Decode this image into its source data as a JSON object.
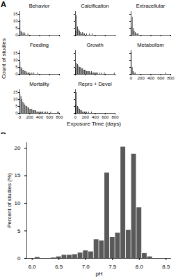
{
  "chart_data": [
    {
      "type": "histogram",
      "panel": "A",
      "title": "Behavior",
      "color": "#333333",
      "tick_labels": "y",
      "bins": [
        0,
        20,
        40,
        60,
        80,
        100,
        120,
        140,
        160,
        180
      ],
      "values": [
        11,
        3,
        2,
        1,
        2,
        1,
        0,
        0,
        1
      ],
      "xlim": [
        0,
        800
      ],
      "xticks": [
        0,
        200,
        400,
        600,
        800
      ],
      "ylim": [
        0,
        17
      ],
      "yticks": [
        0,
        5,
        10,
        15
      ]
    },
    {
      "type": "histogram",
      "title": "Calcification",
      "color": "#333333",
      "tick_labels": false,
      "bins": [
        0,
        20,
        40,
        60,
        80,
        100,
        120,
        140,
        160,
        180,
        200,
        220,
        240,
        260,
        280,
        300,
        320,
        340,
        360
      ],
      "values": [
        3,
        14,
        6,
        4,
        3,
        2,
        1,
        2,
        1,
        1,
        0,
        1,
        0,
        0,
        1,
        0,
        0,
        1
      ],
      "xlim": [
        0,
        800
      ],
      "xticks": [
        0,
        200,
        400,
        600,
        800
      ],
      "ylim": [
        0,
        17
      ],
      "yticks": [
        0,
        5,
        10,
        15
      ]
    },
    {
      "type": "histogram",
      "title": "Extracellular",
      "color": "#333333",
      "tick_labels": false,
      "bins": [
        0,
        20,
        40,
        60,
        80,
        100,
        120,
        140,
        160
      ],
      "values": [
        6,
        13,
        5,
        3,
        2,
        1,
        1,
        1
      ],
      "xlim": [
        0,
        800
      ],
      "xticks": [
        0,
        200,
        400,
        600,
        800
      ],
      "ylim": [
        0,
        17
      ],
      "yticks": [
        0,
        5,
        10,
        15
      ]
    },
    {
      "type": "histogram",
      "title": "Feeding",
      "color": "#333333",
      "tick_labels": "y",
      "bins": [
        0,
        20,
        40,
        60,
        80,
        100,
        120,
        140,
        160,
        180,
        200,
        220,
        240,
        260,
        280,
        300,
        320,
        340,
        360,
        380
      ],
      "values": [
        9,
        5,
        4,
        3,
        3,
        2,
        2,
        1,
        1,
        1,
        1,
        0,
        1,
        0,
        1,
        0,
        0,
        0,
        1
      ],
      "xlim": [
        0,
        800
      ],
      "xticks": [
        0,
        200,
        400,
        600,
        800
      ],
      "ylim": [
        0,
        17
      ],
      "yticks": [
        0,
        5,
        10,
        15
      ]
    },
    {
      "type": "histogram",
      "title": "Growth",
      "color": "#333333",
      "tick_labels": false,
      "bins": [
        0,
        20,
        40,
        60,
        80,
        100,
        120,
        140,
        160,
        180,
        200,
        220,
        240,
        260,
        280,
        300,
        320,
        340,
        360,
        380,
        400,
        420,
        440,
        460,
        480,
        500,
        520,
        540,
        560,
        580,
        600,
        620,
        640,
        660,
        680,
        700,
        720,
        740,
        760,
        780,
        800
      ],
      "values": [
        4,
        8,
        7,
        6,
        5,
        5,
        4,
        4,
        3,
        3,
        3,
        2,
        2,
        2,
        2,
        1,
        2,
        1,
        1,
        1,
        1,
        1,
        1,
        0,
        1,
        0,
        1,
        0,
        0,
        1,
        0,
        0,
        0,
        0,
        0,
        0,
        0,
        0,
        0,
        1
      ],
      "xlim": [
        0,
        800
      ],
      "xticks": [
        0,
        200,
        400,
        600,
        800
      ],
      "ylim": [
        0,
        17
      ],
      "yticks": [
        0,
        5,
        10,
        15
      ]
    },
    {
      "type": "histogram",
      "title": "Metabolism",
      "color": "#333333",
      "tick_labels": "x",
      "bins": [
        0,
        20,
        40,
        60,
        80,
        100,
        120,
        140,
        160,
        180,
        200,
        220,
        240,
        260,
        280,
        300,
        320,
        340,
        360,
        380,
        400,
        420,
        440,
        460,
        480,
        500,
        520,
        540,
        560,
        580,
        600,
        620,
        640,
        660,
        680,
        700,
        720
      ],
      "values": [
        16,
        5,
        2,
        1,
        1,
        0,
        0,
        0,
        0,
        0,
        0,
        0,
        0,
        0,
        0,
        0,
        0,
        0,
        0,
        0,
        0,
        0,
        0,
        0,
        0,
        0,
        0,
        0,
        0,
        0,
        0,
        0,
        0,
        0,
        0,
        1
      ],
      "xlim": [
        0,
        800
      ],
      "xticks": [
        0,
        200,
        400,
        600,
        800
      ],
      "ylim": [
        0,
        17
      ],
      "yticks": [
        0,
        5,
        10,
        15
      ]
    },
    {
      "type": "histogram",
      "title": "Mortality",
      "color": "#333333",
      "tick_labels": true,
      "xlabel": "Exposure Time (days)",
      "ylabel": "Count of studies",
      "bins": [
        0,
        20,
        40,
        60,
        80,
        100,
        120,
        140,
        160,
        180,
        200,
        220,
        240,
        260,
        280,
        300,
        320,
        340,
        360,
        380,
        400,
        420,
        440,
        460,
        480,
        500,
        520,
        540,
        560,
        580,
        600,
        620,
        640,
        660,
        680,
        700,
        720,
        740,
        760,
        780,
        800
      ],
      "values": [
        14,
        12,
        10,
        8,
        7,
        6,
        5,
        5,
        4,
        4,
        3,
        3,
        3,
        2,
        2,
        2,
        2,
        1,
        1,
        1,
        1,
        1,
        1,
        1,
        0,
        1,
        1,
        0,
        1,
        0,
        0,
        1,
        0,
        0,
        0,
        0,
        0,
        0,
        1,
        1
      ],
      "xlim": [
        0,
        800
      ],
      "xticks": [
        0,
        200,
        400,
        600,
        800
      ],
      "ylim": [
        0,
        17
      ],
      "yticks": [
        0,
        5,
        10,
        15
      ]
    },
    {
      "type": "histogram",
      "title": "Repro + Devel",
      "color": "#333333",
      "tick_labels": "x",
      "bins": [
        0,
        20,
        40,
        60,
        80,
        100,
        120,
        140,
        160,
        180,
        200,
        220,
        240,
        260,
        280,
        300,
        320,
        340
      ],
      "values": [
        6,
        15,
        5,
        4,
        3,
        2,
        2,
        1,
        1,
        1,
        1,
        1,
        0,
        1,
        0,
        0,
        1
      ],
      "xlim": [
        0,
        800
      ],
      "xticks": [
        0,
        200,
        400,
        600,
        800
      ],
      "ylim": [
        0,
        17
      ],
      "yticks": [
        0,
        5,
        10,
        15
      ]
    },
    {
      "type": "histogram",
      "panel": "B",
      "color": "#595959",
      "tick_labels": true,
      "xlabel": "pH",
      "ylabel": "Percent of studies (%)",
      "bins": [
        6.05,
        6.15,
        6.25,
        6.35,
        6.45,
        6.55,
        6.65,
        6.75,
        6.85,
        6.95,
        7.05,
        7.15,
        7.25,
        7.35,
        7.45,
        7.55,
        7.65,
        7.75,
        7.85,
        7.95,
        8.05,
        8.15,
        8.25
      ],
      "values": [
        0.2,
        0,
        0,
        0.1,
        0.3,
        0.6,
        0.6,
        0.7,
        1.0,
        1.4,
        1.2,
        3.4,
        3.2,
        15.5,
        3.8,
        4.6,
        20.2,
        5.1,
        18.9,
        9.2,
        0.9,
        0.3
      ],
      "xlim": [
        5.9,
        8.6
      ],
      "xticks": [
        {
          "value": 6,
          "label": "6.0"
        },
        6.5,
        {
          "value": 7,
          "label": "7.0"
        },
        7.5,
        {
          "value": 8,
          "label": "8.0"
        },
        8.5
      ],
      "ylim": [
        0,
        21
      ],
      "yticks": [
        0,
        5,
        10,
        15,
        20
      ]
    }
  ]
}
